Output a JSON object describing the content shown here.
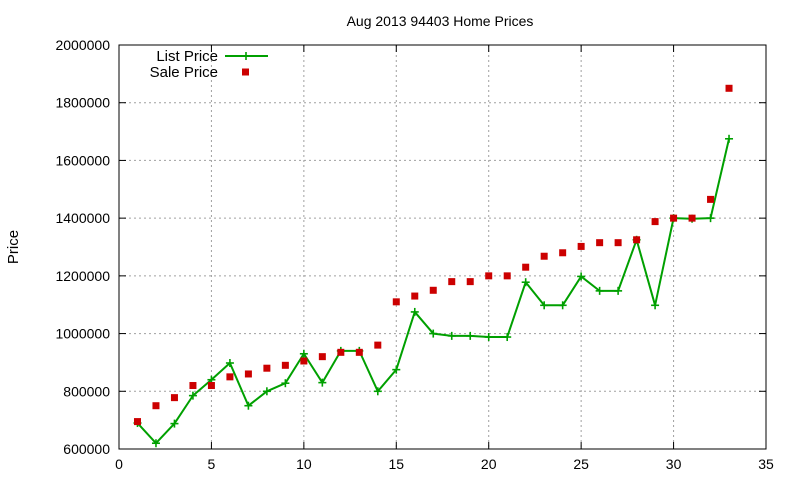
{
  "chart_data": {
    "type": "line",
    "title": "Aug 2013 94403 Home Prices",
    "xlabel": "",
    "ylabel": "Price",
    "xlim": [
      0,
      35
    ],
    "ylim": [
      600000,
      2000000
    ],
    "x_ticks": [
      0,
      5,
      10,
      15,
      20,
      25,
      30,
      35
    ],
    "y_ticks": [
      600000,
      800000,
      1000000,
      1200000,
      1400000,
      1600000,
      1800000,
      2000000
    ],
    "grid": true,
    "legend_position": "top-left",
    "x": [
      1,
      2,
      3,
      4,
      5,
      6,
      7,
      8,
      9,
      10,
      11,
      12,
      13,
      14,
      15,
      16,
      17,
      18,
      19,
      20,
      21,
      22,
      23,
      24,
      25,
      26,
      27,
      28,
      29,
      30,
      31,
      32,
      33
    ],
    "series": [
      {
        "name": "List Price",
        "style": "line-points",
        "marker": "plus",
        "color": "#00a000",
        "values": [
          690000,
          620000,
          688000,
          785000,
          840000,
          898000,
          750000,
          800000,
          828000,
          930000,
          830000,
          940000,
          940000,
          800000,
          875000,
          1075000,
          1000000,
          992000,
          992000,
          988000,
          988000,
          1178000,
          1098000,
          1098000,
          1198000,
          1148000,
          1148000,
          1325000,
          1098000,
          1400000,
          1398000,
          1400000,
          1675000
        ]
      },
      {
        "name": "Sale Price",
        "style": "points",
        "marker": "square",
        "color": "#cc0000",
        "values": [
          695000,
          750000,
          778000,
          820000,
          820000,
          850000,
          860000,
          880000,
          890000,
          905000,
          920000,
          935000,
          935000,
          960000,
          1110000,
          1130000,
          1150000,
          1180000,
          1180000,
          1200000,
          1200000,
          1230000,
          1268000,
          1280000,
          1302000,
          1315000,
          1315000,
          1325000,
          1388000,
          1400000,
          1400000,
          1465000,
          1850000
        ]
      }
    ]
  }
}
